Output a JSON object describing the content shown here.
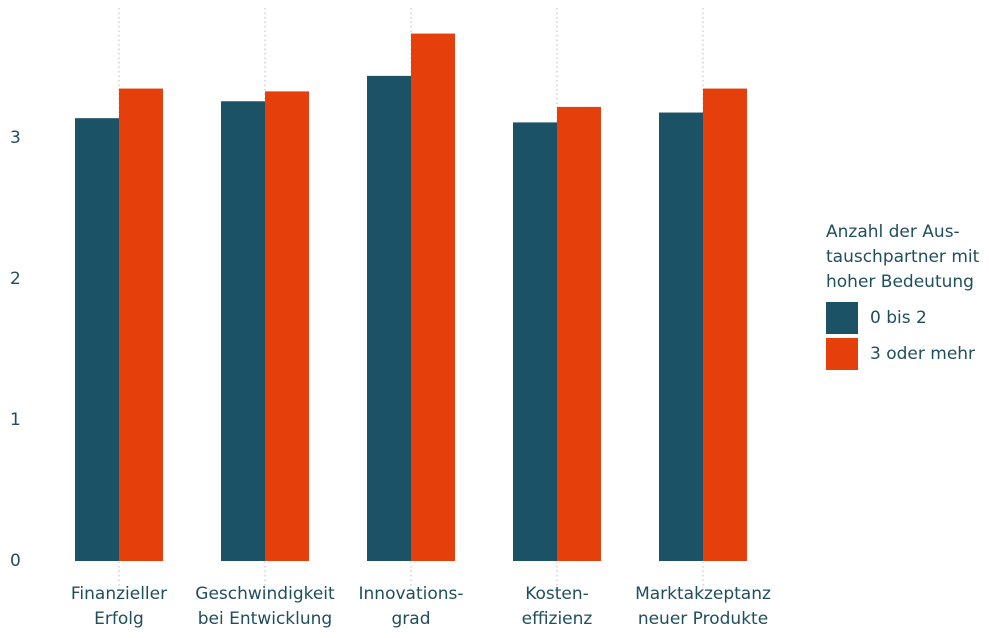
{
  "chart_data": {
    "type": "bar",
    "categories": [
      "Finanzieller\nErfolg",
      "Geschwindigkeit\nbei Entwicklung",
      "Innovations-\ngrad",
      "Kosten-\neffizienz",
      "Marktakzeptanz\nneuer Produkte"
    ],
    "series": [
      {
        "name": "0 bis 2",
        "color": "#1b5266",
        "values": [
          3.14,
          3.26,
          3.44,
          3.11,
          3.18
        ]
      },
      {
        "name": "3 oder mehr",
        "color": "#e5400c",
        "values": [
          3.35,
          3.33,
          3.74,
          3.22,
          3.35
        ]
      }
    ],
    "legend_title": "Anzahl der Aus-\ntauschpartner mit\nhoher Bedeutung",
    "legend_position": "right",
    "ylim": [
      0,
      3.9
    ],
    "yticks": [
      0,
      1,
      2,
      3
    ],
    "grid": "vertical-dotted"
  }
}
